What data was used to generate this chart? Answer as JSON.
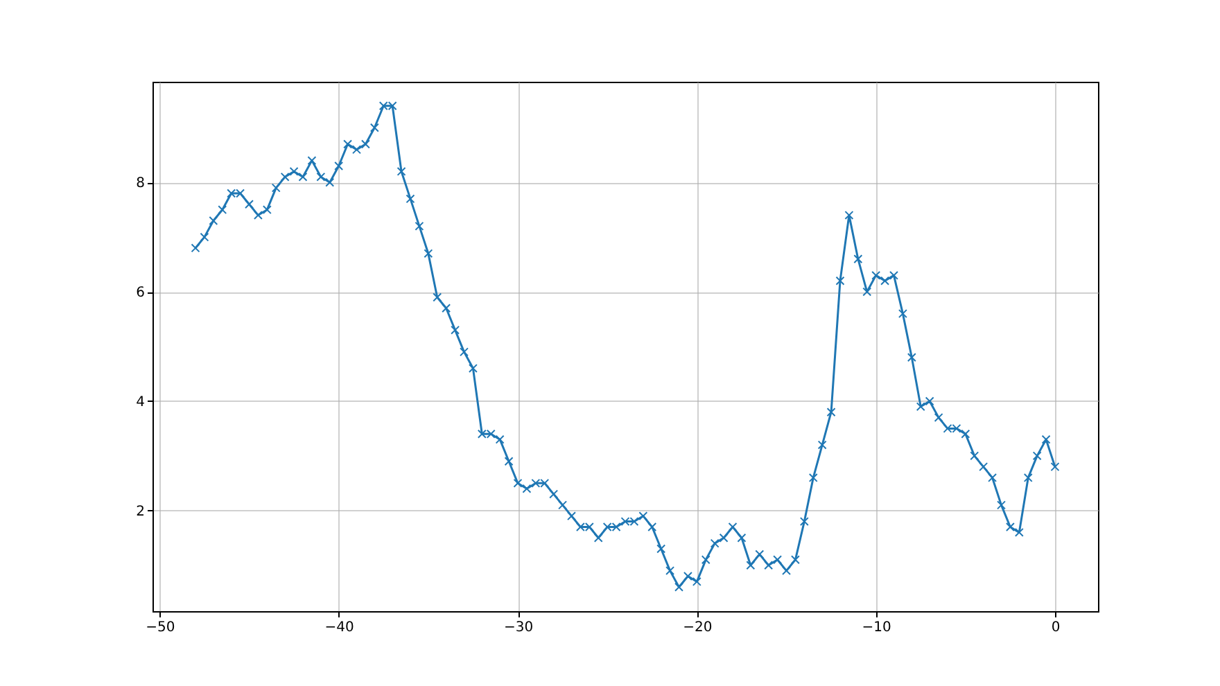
{
  "chart_data": {
    "type": "line",
    "marker": "cross",
    "grid": true,
    "x": [
      -48,
      -47.5,
      -47,
      -46.5,
      -46,
      -45.5,
      -45,
      -44.5,
      -44,
      -43.5,
      -43,
      -42.5,
      -42,
      -41.5,
      -41,
      -40.5,
      -40,
      -39.5,
      -39,
      -38.5,
      -38,
      -37.5,
      -37,
      -36.5,
      -36,
      -35.5,
      -35,
      -34.5,
      -34,
      -33.5,
      -33,
      -32.5,
      -32,
      -31.5,
      -31,
      -30.5,
      -30,
      -29.5,
      -29,
      -28.5,
      -28,
      -27.5,
      -27,
      -26.5,
      -26,
      -25.5,
      -25,
      -24.5,
      -24,
      -23.5,
      -23,
      -22.5,
      -22,
      -21.5,
      -21,
      -20.5,
      -20,
      -19.5,
      -19,
      -18.5,
      -18,
      -17.5,
      -17,
      -16.5,
      -16,
      -15.5,
      -15,
      -14.5,
      -14,
      -13.5,
      -13,
      -12.5,
      -12,
      -11.5,
      -11,
      -10.5,
      -10,
      -9.5,
      -9,
      -8.5,
      -8,
      -7.5,
      -7,
      -6.5,
      -6,
      -5.5,
      -5,
      -4.5,
      -4,
      -3.5,
      -3,
      -2.5,
      -2,
      -1.5,
      -1,
      -0.5,
      0
    ],
    "series": [
      {
        "color": "#1f77b4",
        "values": [
          6.8,
          7.0,
          7.3,
          7.5,
          7.8,
          7.8,
          7.6,
          7.4,
          7.5,
          7.9,
          8.1,
          8.2,
          8.1,
          8.4,
          8.1,
          8.0,
          8.3,
          8.7,
          8.6,
          8.7,
          9.0,
          9.4,
          9.4,
          8.2,
          7.7,
          7.2,
          6.7,
          5.9,
          5.7,
          5.3,
          4.9,
          4.6,
          3.4,
          3.4,
          3.3,
          2.9,
          2.5,
          2.4,
          2.5,
          2.5,
          2.3,
          2.1,
          1.9,
          1.7,
          1.7,
          1.5,
          1.7,
          1.7,
          1.8,
          1.8,
          1.9,
          1.7,
          1.3,
          0.9,
          0.6,
          0.8,
          0.7,
          1.1,
          1.4,
          1.5,
          1.7,
          1.5,
          1.0,
          1.2,
          1.0,
          1.1,
          0.9,
          1.1,
          1.8,
          2.6,
          3.2,
          3.8,
          6.2,
          7.4,
          6.6,
          6.0,
          6.3,
          6.2,
          6.3,
          5.6,
          4.8,
          3.9,
          4.0,
          3.7,
          3.5,
          3.5,
          3.4,
          3.0,
          2.8,
          2.6,
          2.1,
          1.7,
          1.6,
          2.6,
          3.0,
          3.3,
          2.8
        ]
      }
    ],
    "xlim": [
      -50.4,
      2.4
    ],
    "xticks": [
      -50,
      -40,
      -30,
      -20,
      -10,
      0
    ],
    "ylim": [
      0.16,
      9.84
    ],
    "yticks": [
      2,
      4,
      6,
      8
    ]
  }
}
